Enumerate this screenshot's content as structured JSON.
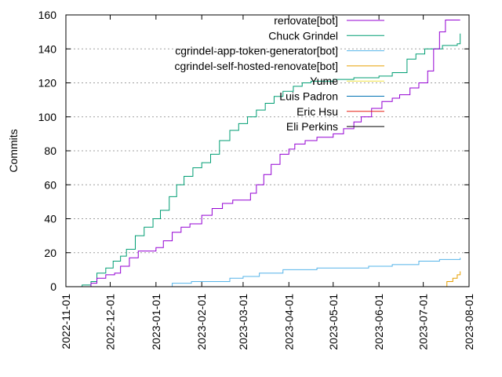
{
  "chart_data": {
    "type": "line",
    "title": "",
    "xlabel": "",
    "ylabel": "Commits",
    "x_type": "date",
    "xlim": [
      "2022-11-01",
      "2023-08-01"
    ],
    "ylim": [
      0,
      160
    ],
    "yticks": [
      0,
      20,
      40,
      60,
      80,
      100,
      120,
      140,
      160
    ],
    "xticks": [
      "2022-11-01",
      "2022-12-01",
      "2023-01-01",
      "2023-02-01",
      "2023-03-01",
      "2023-04-01",
      "2023-05-01",
      "2023-06-01",
      "2023-07-01",
      "2023-08-01"
    ],
    "grid": "horizontal-dotted",
    "legend_position": "top-right",
    "series": [
      {
        "name": "renovate[bot]",
        "color": "#9400d3",
        "points": [
          [
            "2022-11-15",
            0
          ],
          [
            "2022-11-18",
            2
          ],
          [
            "2022-11-22",
            5
          ],
          [
            "2022-11-28",
            7
          ],
          [
            "2022-12-04",
            8
          ],
          [
            "2022-12-08",
            12
          ],
          [
            "2022-12-14",
            17
          ],
          [
            "2022-12-20",
            21
          ],
          [
            "2022-12-27",
            21
          ],
          [
            "2023-01-01",
            23
          ],
          [
            "2023-01-06",
            27
          ],
          [
            "2023-01-12",
            32
          ],
          [
            "2023-01-18",
            35
          ],
          [
            "2023-01-24",
            37
          ],
          [
            "2023-02-01",
            42
          ],
          [
            "2023-02-08",
            46
          ],
          [
            "2023-02-15",
            49
          ],
          [
            "2023-02-22",
            51
          ],
          [
            "2023-03-01",
            51
          ],
          [
            "2023-03-06",
            55
          ],
          [
            "2023-03-10",
            60
          ],
          [
            "2023-03-15",
            66
          ],
          [
            "2023-03-20",
            72
          ],
          [
            "2023-03-26",
            78
          ],
          [
            "2023-04-01",
            81
          ],
          [
            "2023-04-05",
            84
          ],
          [
            "2023-04-12",
            86
          ],
          [
            "2023-04-20",
            88
          ],
          [
            "2023-05-01",
            90
          ],
          [
            "2023-05-08",
            93
          ],
          [
            "2023-05-15",
            97
          ],
          [
            "2023-05-20",
            100
          ],
          [
            "2023-05-27",
            105
          ],
          [
            "2023-06-03",
            109
          ],
          [
            "2023-06-10",
            111
          ],
          [
            "2023-06-15",
            113
          ],
          [
            "2023-06-22",
            117
          ],
          [
            "2023-06-28",
            120
          ],
          [
            "2023-07-04",
            127
          ],
          [
            "2023-07-08",
            140
          ],
          [
            "2023-07-12",
            150
          ],
          [
            "2023-07-16",
            157
          ],
          [
            "2023-07-26",
            157
          ]
        ]
      },
      {
        "name": "Chuck Grindel",
        "color": "#009e73",
        "points": [
          [
            "2022-11-08",
            0
          ],
          [
            "2022-11-12",
            1
          ],
          [
            "2022-11-18",
            3
          ],
          [
            "2022-11-22",
            8
          ],
          [
            "2022-11-28",
            11
          ],
          [
            "2022-12-03",
            15
          ],
          [
            "2022-12-08",
            18
          ],
          [
            "2022-12-12",
            22
          ],
          [
            "2022-12-18",
            30
          ],
          [
            "2022-12-24",
            35
          ],
          [
            "2022-12-30",
            40
          ],
          [
            "2023-01-04",
            45
          ],
          [
            "2023-01-10",
            53
          ],
          [
            "2023-01-15",
            60
          ],
          [
            "2023-01-20",
            65
          ],
          [
            "2023-01-26",
            70
          ],
          [
            "2023-02-01",
            73
          ],
          [
            "2023-02-07",
            78
          ],
          [
            "2023-02-13",
            86
          ],
          [
            "2023-02-20",
            92
          ],
          [
            "2023-02-26",
            96
          ],
          [
            "2023-03-04",
            100
          ],
          [
            "2023-03-10",
            104
          ],
          [
            "2023-03-16",
            108
          ],
          [
            "2023-03-22",
            112
          ],
          [
            "2023-03-28",
            115
          ],
          [
            "2023-04-04",
            118
          ],
          [
            "2023-04-10",
            120
          ],
          [
            "2023-04-16",
            121
          ],
          [
            "2023-05-01",
            122
          ],
          [
            "2023-05-15",
            123
          ],
          [
            "2023-06-01",
            124
          ],
          [
            "2023-06-10",
            126
          ],
          [
            "2023-06-20",
            134
          ],
          [
            "2023-06-26",
            137
          ],
          [
            "2023-07-02",
            140
          ],
          [
            "2023-07-14",
            142
          ],
          [
            "2023-07-24",
            143
          ],
          [
            "2023-07-26",
            149
          ]
        ]
      },
      {
        "name": "cgrindel-app-token-generator[bot]",
        "color": "#56b4e9",
        "points": [
          [
            "2023-01-10",
            0
          ],
          [
            "2023-01-12",
            2
          ],
          [
            "2023-01-25",
            3
          ],
          [
            "2023-02-20",
            5
          ],
          [
            "2023-03-01",
            6
          ],
          [
            "2023-03-12",
            8
          ],
          [
            "2023-03-28",
            10
          ],
          [
            "2023-04-20",
            11
          ],
          [
            "2023-05-10",
            11
          ],
          [
            "2023-05-25",
            12
          ],
          [
            "2023-06-10",
            13
          ],
          [
            "2023-06-28",
            15
          ],
          [
            "2023-07-12",
            16
          ],
          [
            "2023-07-26",
            17
          ]
        ]
      },
      {
        "name": "cgrindel-self-hosted-renovate[bot]",
        "color": "#e69f00",
        "points": [
          [
            "2023-07-14",
            0
          ],
          [
            "2023-07-17",
            3
          ],
          [
            "2023-07-21",
            5
          ],
          [
            "2023-07-24",
            7
          ],
          [
            "2023-07-26",
            9
          ]
        ]
      },
      {
        "name": "Yume",
        "color": "#f0e442",
        "points": [
          [
            "2022-11-18",
            0
          ],
          [
            "2023-07-26",
            0
          ]
        ]
      },
      {
        "name": "Luis Padron",
        "color": "#0072b2",
        "points": [
          [
            "2023-03-01",
            0
          ],
          [
            "2023-07-26",
            0
          ]
        ]
      },
      {
        "name": "Eric Hsu",
        "color": "#e51e10",
        "points": [
          [
            "2023-06-01",
            0
          ],
          [
            "2023-07-26",
            0
          ]
        ]
      },
      {
        "name": "Eli Perkins",
        "color": "#000000",
        "points": [
          [
            "2023-05-01",
            0
          ],
          [
            "2023-07-26",
            0
          ]
        ]
      }
    ]
  }
}
